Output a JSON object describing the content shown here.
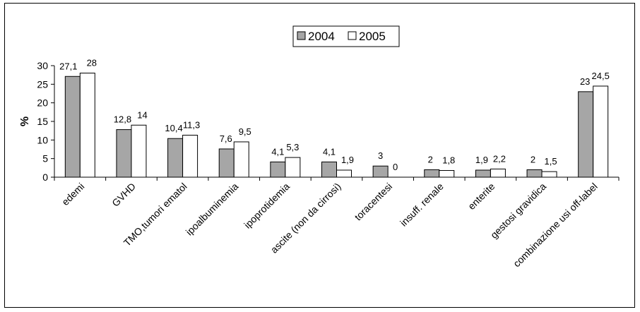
{
  "chart_data": {
    "type": "bar",
    "ylabel": "%",
    "xlabel": "",
    "title": "",
    "ylim": [
      0,
      30
    ],
    "yticks": [
      0,
      5,
      10,
      15,
      20,
      25,
      30
    ],
    "grid": false,
    "legend_position": "top-center",
    "categories": [
      "edemi",
      "GVHD",
      "TMO,tumori ematol",
      "ipoalbuminemia",
      "ipoprotidemia",
      "ascite (non da cirrosi)",
      "toracentesi",
      "insuff. renale",
      "enterite",
      "gestosi gravidica",
      "combinazione usi off-label"
    ],
    "series": [
      {
        "name": "2004",
        "color": "#a6a6a6",
        "values": [
          27.1,
          12.8,
          10.4,
          7.6,
          4.1,
          4.1,
          3,
          2,
          1.9,
          2,
          23
        ],
        "labels": [
          "27,1",
          "12,8",
          "10,4",
          "7,6",
          "4,1",
          "4,1",
          "3",
          "2",
          "1,9",
          "2",
          "23"
        ]
      },
      {
        "name": "2005",
        "color": "#ffffff",
        "values": [
          28,
          14,
          11.3,
          9.5,
          5.3,
          1.9,
          0,
          1.8,
          2.2,
          1.5,
          24.5
        ],
        "labels": [
          "28",
          "14",
          "11,3",
          "9,5",
          "5,3",
          "1,9",
          "0",
          "1,8",
          "2,2",
          "1,5",
          "24,5"
        ]
      }
    ]
  }
}
